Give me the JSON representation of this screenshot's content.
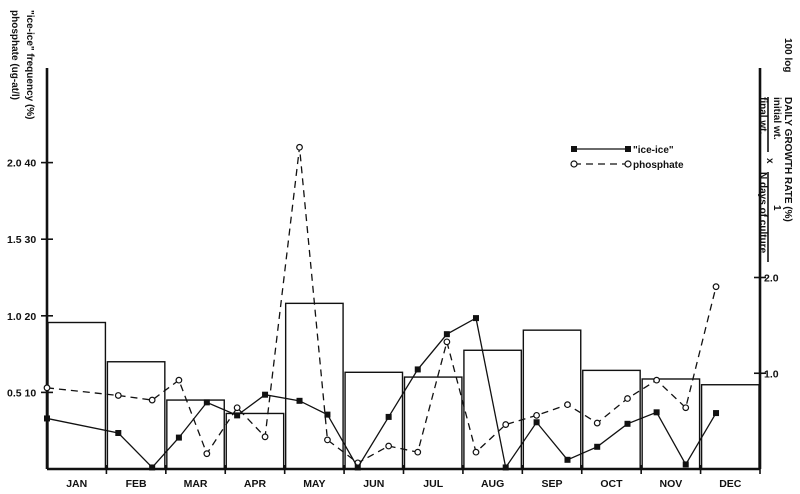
{
  "chart_data": {
    "type": "bar",
    "categories": [
      "JAN",
      "FEB",
      "MAR",
      "APR",
      "MAY",
      "JUN",
      "JUL",
      "AUG",
      "SEP",
      "OCT",
      "NOV",
      "DEC"
    ],
    "left_axis": {
      "label_line1": "phosphate (ug-at/l)",
      "label_line2": "\"ice-ice\" frequency (%)",
      "ticks": [
        {
          "phosphate": "0.5",
          "frequency": "10",
          "value": 10
        },
        {
          "phosphate": "1.0",
          "frequency": "20",
          "value": 20
        },
        {
          "phosphate": "1.5",
          "frequency": "30",
          "value": 30
        },
        {
          "phosphate": "2.0",
          "frequency": "40",
          "value": 40
        }
      ],
      "frequency_range": [
        0,
        50
      ],
      "phosphate_range": [
        0,
        2.5
      ]
    },
    "right_axis": {
      "title": "DAILY GROWTH RATE (%)",
      "formula_prefix": "100 log",
      "numerator": "initial wt.",
      "denominator": "final wt.",
      "times": "x",
      "one": "1",
      "days": "N days of culture",
      "ticks": [
        {
          "label": "1.0",
          "value": 1.0
        },
        {
          "label": "2.0",
          "value": 2.0
        }
      ],
      "range": [
        0,
        4.0
      ]
    },
    "series": [
      {
        "name": "\"ice-ice\"",
        "kind": "line",
        "axis": "frequency",
        "points": [
          {
            "x": 0.0,
            "y": 6.6
          },
          {
            "x": 1.2,
            "y": 4.7
          },
          {
            "x": 1.77,
            "y": 0.2
          },
          {
            "x": 2.22,
            "y": 4.1
          },
          {
            "x": 2.69,
            "y": 8.7
          },
          {
            "x": 3.2,
            "y": 7.0
          },
          {
            "x": 3.67,
            "y": 9.7
          },
          {
            "x": 4.25,
            "y": 8.9
          },
          {
            "x": 4.72,
            "y": 7.1
          },
          {
            "x": 5.23,
            "y": 0.2
          },
          {
            "x": 5.75,
            "y": 6.8
          },
          {
            "x": 6.24,
            "y": 13.0
          },
          {
            "x": 6.73,
            "y": 17.6
          },
          {
            "x": 7.22,
            "y": 19.7
          },
          {
            "x": 7.72,
            "y": 0.2
          },
          {
            "x": 8.24,
            "y": 6.1
          },
          {
            "x": 8.76,
            "y": 1.2
          },
          {
            "x": 9.26,
            "y": 2.9
          },
          {
            "x": 9.77,
            "y": 5.9
          },
          {
            "x": 10.26,
            "y": 7.4
          },
          {
            "x": 10.75,
            "y": 0.6
          },
          {
            "x": 11.26,
            "y": 7.3
          }
        ]
      },
      {
        "name": "phosphate",
        "kind": "dashed-line",
        "axis": "phosphate",
        "points": [
          {
            "x": 0.0,
            "y": 0.53
          },
          {
            "x": 1.2,
            "y": 0.48
          },
          {
            "x": 1.77,
            "y": 0.45
          },
          {
            "x": 2.22,
            "y": 0.58
          },
          {
            "x": 2.69,
            "y": 0.1
          },
          {
            "x": 3.2,
            "y": 0.4
          },
          {
            "x": 3.67,
            "y": 0.21
          },
          {
            "x": 4.25,
            "y": 2.1
          },
          {
            "x": 4.72,
            "y": 0.19
          },
          {
            "x": 5.23,
            "y": 0.04
          },
          {
            "x": 5.75,
            "y": 0.15
          },
          {
            "x": 6.24,
            "y": 0.11
          },
          {
            "x": 6.73,
            "y": 0.83
          },
          {
            "x": 7.22,
            "y": 0.11
          },
          {
            "x": 7.72,
            "y": 0.29
          },
          {
            "x": 8.24,
            "y": 0.35
          },
          {
            "x": 8.76,
            "y": 0.42
          },
          {
            "x": 9.26,
            "y": 0.3
          },
          {
            "x": 9.77,
            "y": 0.46
          },
          {
            "x": 10.26,
            "y": 0.58
          },
          {
            "x": 10.75,
            "y": 0.4
          },
          {
            "x": 11.26,
            "y": 1.19
          }
        ]
      },
      {
        "name": "daily growth rate",
        "kind": "bar",
        "axis": "growth",
        "values": [
          1.53,
          1.12,
          0.72,
          0.58,
          1.73,
          1.01,
          0.96,
          1.24,
          1.45,
          1.03,
          0.94,
          0.88
        ]
      }
    ],
    "legend": {
      "position": "top-right",
      "items": [
        {
          "label": "\"ice-ice\"",
          "marker": "filled-square",
          "line": "solid"
        },
        {
          "label": "phosphate",
          "marker": "open-circle",
          "line": "dashed"
        }
      ]
    }
  }
}
